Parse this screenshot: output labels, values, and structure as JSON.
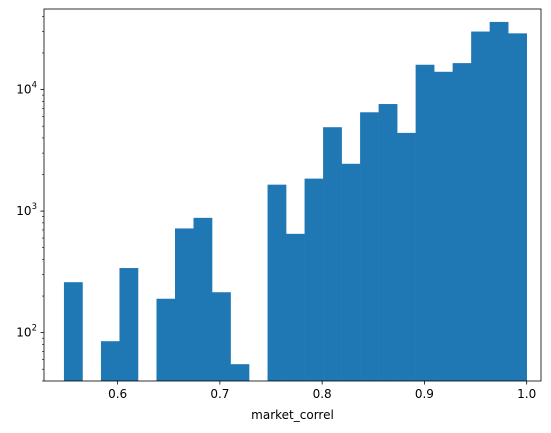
{
  "chart_data": {
    "type": "bar",
    "subtype": "histogram",
    "title": "",
    "xlabel": "market_correl",
    "ylabel": "",
    "yscale": "log",
    "xlim": [
      0.528,
      1.014
    ],
    "ylim": [
      40,
      46000
    ],
    "bar_color": "#1f77b4",
    "bin_edges": [
      0.5475,
      0.5656,
      0.5837,
      0.6018,
      0.6199,
      0.638,
      0.6561,
      0.6742,
      0.6923,
      0.7104,
      0.7285,
      0.7466,
      0.7647,
      0.7828,
      0.8009,
      0.819,
      0.8371,
      0.8552,
      0.8733,
      0.8914,
      0.9095,
      0.9276,
      0.9457,
      0.9638,
      0.9819,
      1.0
    ],
    "counts": [
      260,
      0,
      85,
      340,
      0,
      190,
      720,
      880,
      215,
      55,
      0,
      1650,
      650,
      1850,
      4900,
      2450,
      6500,
      7600,
      4400,
      16000,
      14000,
      16500,
      30000,
      36000,
      29000
    ],
    "x_ticks": [
      {
        "value": 0.6,
        "label": "0.6"
      },
      {
        "value": 0.7,
        "label": "0.7"
      },
      {
        "value": 0.8,
        "label": "0.8"
      },
      {
        "value": 0.9,
        "label": "0.9"
      },
      {
        "value": 1.0,
        "label": "1.0"
      }
    ],
    "y_ticks": [
      {
        "value": 100,
        "base": "10",
        "exp": "2"
      },
      {
        "value": 1000,
        "base": "10",
        "exp": "3"
      },
      {
        "value": 10000,
        "base": "10",
        "exp": "4"
      }
    ]
  }
}
